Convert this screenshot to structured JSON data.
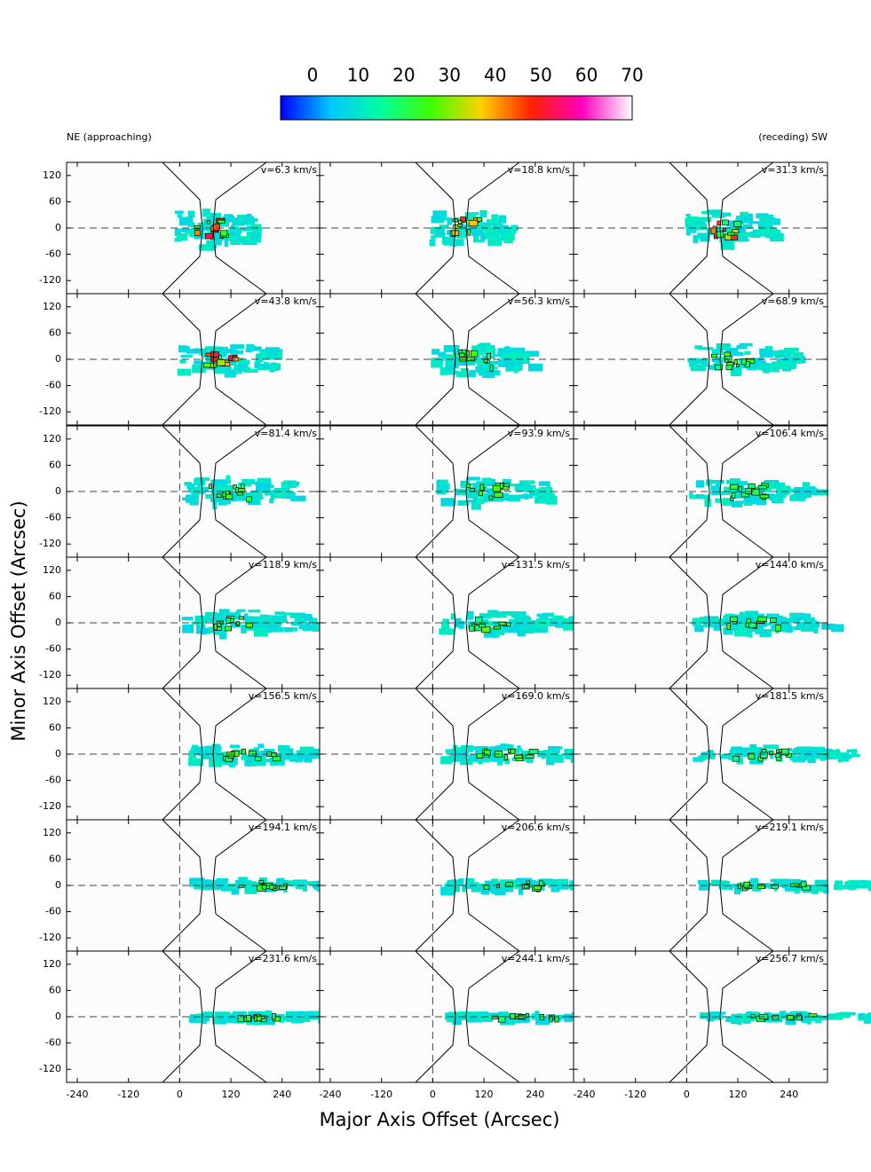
{
  "chart_data": {
    "type": "channel-maps",
    "xlabel": "Major Axis Offset (Arcsec)",
    "ylabel": "Minor Axis Offset (Arcsec)",
    "left_label": "NE (approaching)",
    "right_label": "(receding) SW",
    "xlim": [
      -265,
      330
    ],
    "ylim": [
      -150,
      150
    ],
    "xticks": [
      -240,
      -120,
      0,
      120,
      240
    ],
    "yticks": [
      -120,
      -60,
      0,
      60,
      120
    ],
    "colorbar": {
      "clim": [
        0,
        70
      ],
      "ticks": [
        0,
        10,
        20,
        30,
        40,
        50,
        60,
        70
      ],
      "colors": [
        "#0000ff",
        "#00c8ff",
        "#00ffa0",
        "#40ff00",
        "#ffd000",
        "#ff2000",
        "#ff00c0",
        "#ffffff"
      ]
    },
    "panels": [
      "v=6.3 km/s",
      "v=18.8 km/s",
      "v=31.3 km/s",
      "v=43.8 km/s",
      "v=56.3 km/s",
      "v=68.9 km/s",
      "v=81.4 km/s",
      "v=93.9 km/s",
      "v=106.4 km/s",
      "v=118.9 km/s",
      "v=131.5 km/s",
      "v=144.0 km/s",
      "v=156.5 km/s",
      "v=169.0 km/s",
      "v=181.5 km/s",
      "v=194.1 km/s",
      "v=206.6 km/s",
      "v=219.1 km/s",
      "v=231.6 km/s",
      "v=244.1 km/s",
      "v=256.7 km/s"
    ]
  }
}
